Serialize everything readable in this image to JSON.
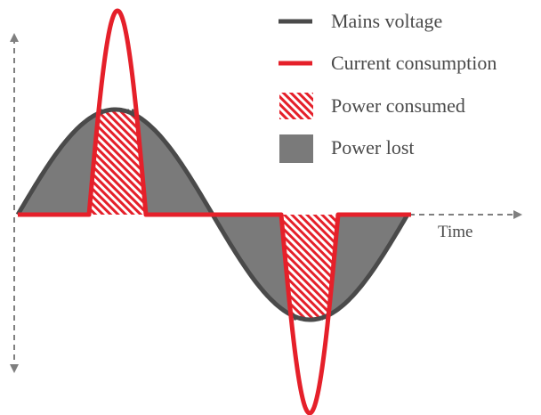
{
  "legend": {
    "voltage_label": "Mains voltage",
    "current_label": "Current consumption",
    "consumed_label": "Power consumed",
    "lost_label": "Power lost"
  },
  "axis": {
    "time_label": "Time"
  },
  "colors": {
    "voltage": "#4a4a4a",
    "current": "#e5202a",
    "power_lost_fill": "#7a7a7a",
    "power_consumed_hatch": "#e5202a",
    "axis": "#7f7f7f"
  }
}
